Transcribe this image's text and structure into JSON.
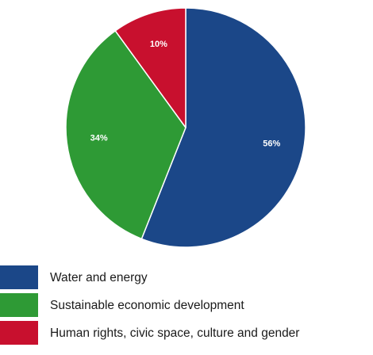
{
  "chart_data": {
    "type": "pie",
    "title": "",
    "legend_position": "bottom-left",
    "start_angle_deg": 0,
    "direction": "clockwise",
    "slices": [
      {
        "name": "Water and energy",
        "value": 56,
        "label": "56%",
        "color": "#1b4788"
      },
      {
        "name": "Sustainable economic development",
        "value": 34,
        "label": "34%",
        "color": "#2e9a35"
      },
      {
        "name": "Human rights, civic space, culture and gender",
        "value": 10,
        "label": "10%",
        "color": "#c8102e"
      }
    ]
  }
}
